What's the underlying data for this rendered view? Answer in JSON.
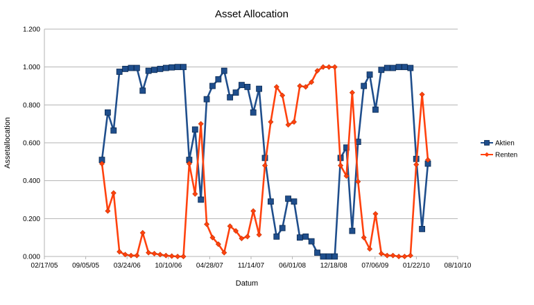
{
  "chart_data": {
    "type": "line",
    "title": "Asset Allocation",
    "xlabel": "Datum",
    "ylabel": "Assetallocation",
    "x_tick_labels": [
      "02/17/05",
      "09/05/05",
      "03/24/06",
      "10/10/06",
      "04/28/07",
      "11/14/07",
      "06/01/08",
      "12/18/08",
      "07/06/09",
      "01/22/10",
      "08/10/10"
    ],
    "y_tick_labels": [
      "0.000",
      "0.200",
      "0.400",
      "0.600",
      "0.800",
      "1.000",
      "1.200"
    ],
    "ylim": [
      0,
      1.2
    ],
    "legend_position": "right",
    "colors": {
      "Aktien": "#1f4e8c",
      "Renten": "#ff420e"
    },
    "series": [
      {
        "name": "Aktien",
        "marker": "square",
        "values": [
          0.51,
          0.76,
          0.665,
          0.975,
          0.99,
          0.995,
          0.995,
          0.875,
          0.98,
          0.985,
          0.99,
          0.995,
          0.998,
          1.0,
          1.0,
          0.51,
          0.67,
          0.3,
          0.83,
          0.9,
          0.935,
          0.98,
          0.84,
          0.865,
          0.905,
          0.895,
          0.76,
          0.885,
          0.52,
          0.29,
          0.105,
          0.15,
          0.305,
          0.29,
          0.1,
          0.105,
          0.08,
          0.02,
          0.0,
          0.0,
          0.0,
          0.52,
          0.575,
          0.135,
          0.605,
          0.9,
          0.96,
          0.775,
          0.985,
          0.995,
          0.995,
          1.0,
          1.0,
          0.995,
          0.515,
          0.145,
          0.49
        ]
      },
      {
        "name": "Renten",
        "marker": "diamond",
        "values": [
          0.49,
          0.24,
          0.335,
          0.025,
          0.01,
          0.005,
          0.005,
          0.125,
          0.02,
          0.015,
          0.01,
          0.005,
          0.002,
          0.0,
          0.0,
          0.49,
          0.33,
          0.7,
          0.17,
          0.1,
          0.065,
          0.02,
          0.16,
          0.135,
          0.095,
          0.105,
          0.24,
          0.115,
          0.48,
          0.71,
          0.895,
          0.85,
          0.695,
          0.71,
          0.9,
          0.895,
          0.92,
          0.98,
          1.0,
          1.0,
          1.0,
          0.48,
          0.425,
          0.865,
          0.395,
          0.1,
          0.04,
          0.225,
          0.015,
          0.005,
          0.005,
          0.0,
          0.0,
          0.005,
          0.485,
          0.855,
          0.51
        ]
      }
    ]
  }
}
